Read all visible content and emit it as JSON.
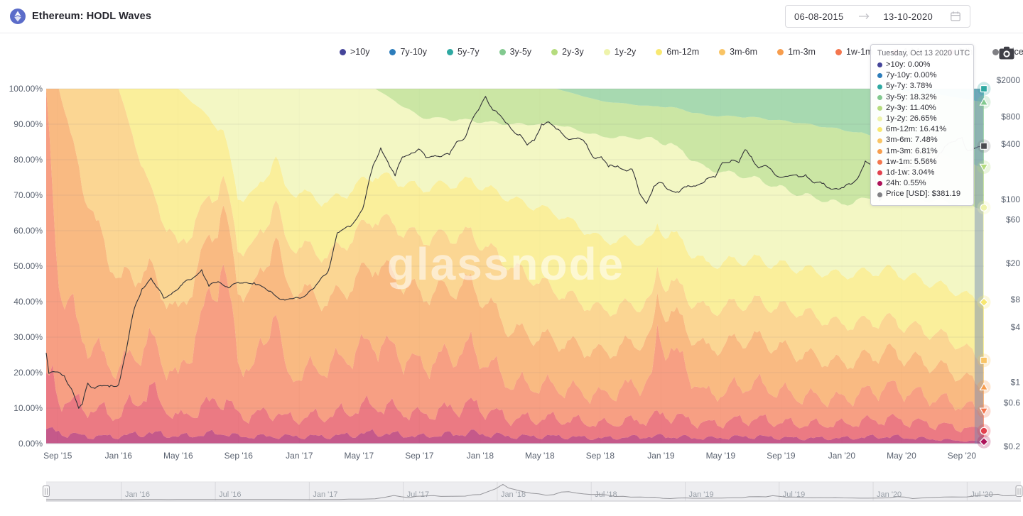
{
  "header": {
    "title": "Ethereum: HODL Waves",
    "date_range": {
      "from": "06-08-2015",
      "to": "13-10-2020"
    }
  },
  "watermark": "glassnode",
  "legend": [
    {
      "label": ">10y",
      "color": "#45459a"
    },
    {
      "label": "7y-10y",
      "color": "#2d7dbb"
    },
    {
      "label": "5y-7y",
      "color": "#2fa9a2"
    },
    {
      "label": "3y-5y",
      "color": "#82c98f"
    },
    {
      "label": "2y-3y",
      "color": "#b5dc7e"
    },
    {
      "label": "1y-2y",
      "color": "#eef3ab"
    },
    {
      "label": "6m-12m",
      "color": "#f8e871"
    },
    {
      "label": "3m-6m",
      "color": "#f9c465"
    },
    {
      "label": "1m-3m",
      "color": "#f79d4d"
    },
    {
      "label": "1w-1m",
      "color": "#f4764e"
    },
    {
      "label": "1d-1w",
      "color": "#e2414e"
    },
    {
      "label": "24h",
      "color": "#ad1259"
    },
    {
      "label": "Price [USD]",
      "color": "#808084"
    }
  ],
  "tooltip": {
    "title": "Tuesday, Oct 13 2020 UTC",
    "rows": [
      {
        "label": ">10y",
        "value": "0.00%",
        "color": "#45459a"
      },
      {
        "label": "7y-10y",
        "value": "0.00%",
        "color": "#2d7dbb"
      },
      {
        "label": "5y-7y",
        "value": "3.78%",
        "color": "#2fa9a2"
      },
      {
        "label": "3y-5y",
        "value": "18.32%",
        "color": "#82c98f"
      },
      {
        "label": "2y-3y",
        "value": "11.40%",
        "color": "#b5dc7e"
      },
      {
        "label": "1y-2y",
        "value": "26.65%",
        "color": "#eef3ab"
      },
      {
        "label": "6m-12m",
        "value": "16.41%",
        "color": "#f8e871"
      },
      {
        "label": "3m-6m",
        "value": "7.48%",
        "color": "#f9c465"
      },
      {
        "label": "1m-3m",
        "value": "6.81%",
        "color": "#f79d4d"
      },
      {
        "label": "1w-1m",
        "value": "5.56%",
        "color": "#f4764e"
      },
      {
        "label": "1d-1w",
        "value": "3.04%",
        "color": "#e2414e"
      },
      {
        "label": "24h",
        "value": "0.55%",
        "color": "#ad1259"
      },
      {
        "label": "Price [USD]",
        "value": "$381.19",
        "color": "#808084"
      }
    ]
  },
  "axes": {
    "y_left": [
      {
        "label": "100.00%",
        "value": 100
      },
      {
        "label": "90.00%",
        "value": 90
      },
      {
        "label": "80.00%",
        "value": 80
      },
      {
        "label": "70.00%",
        "value": 70
      },
      {
        "label": "60.00%",
        "value": 60
      },
      {
        "label": "50.00%",
        "value": 50
      },
      {
        "label": "40.00%",
        "value": 40
      },
      {
        "label": "30.00%",
        "value": 30
      },
      {
        "label": "20.00%",
        "value": 20
      },
      {
        "label": "10.00%",
        "value": 10
      },
      {
        "label": "0.00%",
        "value": 0
      }
    ],
    "y_right": [
      {
        "label": "$2000",
        "value": 2000
      },
      {
        "label": "$800",
        "value": 800
      },
      {
        "label": "$400",
        "value": 400
      },
      {
        "label": "$100",
        "value": 100
      },
      {
        "label": "$60",
        "value": 60
      },
      {
        "label": "$20",
        "value": 20
      },
      {
        "label": "$8",
        "value": 8
      },
      {
        "label": "$4",
        "value": 4
      },
      {
        "label": "$1",
        "value": 1
      },
      {
        "label": "$0.6",
        "value": 0.6
      },
      {
        "label": "$0.2",
        "value": 0.2
      }
    ],
    "x_ticks": [
      {
        "label": "Sep '15",
        "t": 2015.664
      },
      {
        "label": "Jan '16",
        "t": 2016.0
      },
      {
        "label": "May '16",
        "t": 2016.33
      },
      {
        "label": "Sep '16",
        "t": 2016.664
      },
      {
        "label": "Jan '17",
        "t": 2017.0
      },
      {
        "label": "May '17",
        "t": 2017.33
      },
      {
        "label": "Sep '17",
        "t": 2017.664
      },
      {
        "label": "Jan '18",
        "t": 2018.0
      },
      {
        "label": "May '18",
        "t": 2018.33
      },
      {
        "label": "Sep '18",
        "t": 2018.664
      },
      {
        "label": "Jan '19",
        "t": 2019.0
      },
      {
        "label": "May '19",
        "t": 2019.33
      },
      {
        "label": "Sep '19",
        "t": 2019.664
      },
      {
        "label": "Jan '20",
        "t": 2020.0
      },
      {
        "label": "May '20",
        "t": 2020.33
      },
      {
        "label": "Sep '20",
        "t": 2020.664
      }
    ]
  },
  "navigator": {
    "ticks": [
      {
        "label": "Jan '16",
        "t": 2016.0
      },
      {
        "label": "Jul '16",
        "t": 2016.5
      },
      {
        "label": "Jan '17",
        "t": 2017.0
      },
      {
        "label": "Jul '17",
        "t": 2017.5
      },
      {
        "label": "Jan '18",
        "t": 2018.0
      },
      {
        "label": "Jul '18",
        "t": 2018.5
      },
      {
        "label": "Jan '19",
        "t": 2019.0
      },
      {
        "label": "Jul '19",
        "t": 2019.5
      },
      {
        "label": "Jan '20",
        "t": 2020.0
      },
      {
        "label": "Jul '20",
        "t": 2020.5
      }
    ]
  },
  "chart_data": {
    "type": "area",
    "subtype": "100pct-stacked-hodl-waves-with-log-price-line",
    "title": "Ethereum: HODL Waves",
    "x_range_decimal_years": [
      2015.6,
      2020.786
    ],
    "ylim_left_pct": [
      0,
      100
    ],
    "y_right_scale": "log",
    "grid": true,
    "legend_position": "top-center",
    "sample_years": [
      2015.6,
      2015.67,
      2015.83,
      2016.0,
      2016.17,
      2016.33,
      2016.58,
      2016.66,
      2016.75,
      2016.87,
      2016.92,
      2017.17,
      2017.42,
      2017.67,
      2017.95,
      2018.17,
      2018.42,
      2018.67,
      2018.95,
      2018.98,
      2019.04,
      2019.25,
      2019.5,
      2019.75,
      2020.0,
      2020.25,
      2020.58,
      2020.786
    ],
    "series": [
      {
        "name": "24h",
        "color": "#ad1259",
        "marker": "diamond",
        "values": [
          4,
          3,
          2,
          2,
          3,
          2,
          3,
          2,
          2,
          2,
          2,
          2,
          3,
          2,
          3,
          2,
          2,
          1.5,
          2,
          2,
          2,
          1.5,
          2,
          1.5,
          1.5,
          2,
          1,
          0.55
        ]
      },
      {
        "name": "1d-1w",
        "color": "#e2414e",
        "marker": "circle",
        "values": [
          16,
          10,
          8,
          6,
          12,
          5,
          10,
          6,
          6,
          7,
          5,
          6,
          8,
          6,
          8,
          5,
          5,
          4,
          5,
          6,
          6,
          4,
          5,
          4,
          4,
          5,
          4,
          3.04
        ]
      },
      {
        "name": "1w-1m",
        "color": "#f4764e",
        "marker": "triangle-down",
        "values": [
          80,
          32,
          18,
          13,
          14,
          11,
          38,
          16,
          13,
          30,
          12,
          14,
          18,
          14,
          16,
          10,
          9,
          8,
          11,
          22,
          20,
          8,
          10,
          8,
          7,
          9,
          7,
          5.56
        ]
      },
      {
        "name": "1m-3m",
        "color": "#f79d4d",
        "marker": "triangle-up",
        "values": [
          0,
          55,
          40,
          25,
          20,
          18,
          16,
          20,
          22,
          20,
          26,
          18,
          22,
          20,
          18,
          15,
          13,
          12,
          12,
          10,
          10,
          13,
          13,
          12,
          10,
          10,
          9,
          6.81
        ]
      },
      {
        "name": "3m-6m",
        "color": "#f9c465",
        "marker": "square",
        "values": [
          0,
          0,
          32,
          54,
          23,
          19,
          8,
          12,
          12,
          10,
          12,
          13,
          13,
          16,
          14,
          18,
          14,
          12,
          10,
          8,
          8,
          11,
          10,
          12,
          11,
          9,
          9,
          7.48
        ]
      },
      {
        "name": "6m-12m",
        "color": "#f8e871",
        "marker": "diamond",
        "values": [
          0,
          0,
          0,
          0,
          28,
          45,
          13,
          14,
          15,
          12,
          15,
          15,
          12,
          14,
          15,
          19,
          22,
          20,
          17,
          13,
          14,
          13,
          12,
          12,
          14,
          14,
          14,
          16.41
        ]
      },
      {
        "name": "1y-2y",
        "color": "#eef3ab",
        "marker": "circle",
        "values": [
          0,
          0,
          0,
          0,
          0,
          0,
          12,
          30,
          30,
          19,
          28,
          32,
          24,
          20,
          17,
          21,
          25,
          29,
          29,
          24,
          25,
          27,
          23,
          21,
          20,
          21,
          24,
          26.65
        ]
      },
      {
        "name": "2y-3y",
        "color": "#b5dc7e",
        "marker": "triangle-down",
        "values": [
          0,
          0,
          0,
          0,
          0,
          0,
          0,
          0,
          0,
          0,
          0,
          0,
          0,
          8,
          9,
          10,
          10,
          10,
          9,
          10,
          10,
          15,
          17,
          20,
          21,
          16,
          13,
          11.4
        ]
      },
      {
        "name": "3y-5y",
        "color": "#82c98f",
        "marker": "triangle-up",
        "values": [
          0,
          0,
          0,
          0,
          0,
          0,
          0,
          0,
          0,
          0,
          0,
          0,
          0,
          0,
          0,
          0,
          0,
          3.5,
          5,
          5,
          5,
          7.5,
          8,
          9.5,
          11.5,
          14,
          17,
          18.32
        ]
      },
      {
        "name": "5y-7y",
        "color": "#2fa9a2",
        "marker": "square",
        "values": [
          0,
          0,
          0,
          0,
          0,
          0,
          0,
          0,
          0,
          0,
          0,
          0,
          0,
          0,
          0,
          0,
          0,
          0,
          0,
          0,
          0,
          0,
          0,
          0,
          0,
          0,
          2,
          3.78
        ]
      },
      {
        "name": "7y-10y",
        "color": "#2d7dbb",
        "marker": "circle",
        "values": []
      },
      {
        "name": ">10y",
        "color": "#45459a",
        "marker": "circle",
        "values": []
      }
    ],
    "price_line": {
      "name": "Price [USD]",
      "color": "#333338",
      "points": [
        [
          2015.6,
          2.1
        ],
        [
          2015.615,
          1.25
        ],
        [
          2015.65,
          1.3
        ],
        [
          2015.7,
          1.18
        ],
        [
          2015.74,
          0.85
        ],
        [
          2015.78,
          0.52
        ],
        [
          2015.8,
          0.58
        ],
        [
          2015.83,
          0.98
        ],
        [
          2015.86,
          0.87
        ],
        [
          2015.9,
          0.92
        ],
        [
          2015.95,
          0.89
        ],
        [
          2016.0,
          0.94
        ],
        [
          2016.04,
          2.1
        ],
        [
          2016.08,
          5.6
        ],
        [
          2016.13,
          10.5
        ],
        [
          2016.18,
          13.8
        ],
        [
          2016.21,
          11.0
        ],
        [
          2016.25,
          8.3
        ],
        [
          2016.3,
          9.6
        ],
        [
          2016.35,
          11.6
        ],
        [
          2016.42,
          14.2
        ],
        [
          2016.46,
          17.0
        ],
        [
          2016.5,
          11.2
        ],
        [
          2016.55,
          12.6
        ],
        [
          2016.6,
          11.1
        ],
        [
          2016.67,
          12.1
        ],
        [
          2016.75,
          12.3
        ],
        [
          2016.83,
          9.9
        ],
        [
          2016.92,
          7.9
        ],
        [
          2017.0,
          8.3
        ],
        [
          2017.08,
          10.6
        ],
        [
          2017.16,
          16.5
        ],
        [
          2017.21,
          43
        ],
        [
          2017.28,
          50
        ],
        [
          2017.35,
          78
        ],
        [
          2017.4,
          205
        ],
        [
          2017.45,
          365
        ],
        [
          2017.49,
          255
        ],
        [
          2017.53,
          180
        ],
        [
          2017.57,
          290
        ],
        [
          2017.62,
          320
        ],
        [
          2017.66,
          355
        ],
        [
          2017.7,
          285
        ],
        [
          2017.75,
          300
        ],
        [
          2017.83,
          308
        ],
        [
          2017.87,
          425
        ],
        [
          2017.91,
          455
        ],
        [
          2017.95,
          700
        ],
        [
          2017.99,
          940
        ],
        [
          2018.03,
          1330
        ],
        [
          2018.06,
          1020
        ],
        [
          2018.1,
          860
        ],
        [
          2018.14,
          690
        ],
        [
          2018.18,
          565
        ],
        [
          2018.22,
          510
        ],
        [
          2018.26,
          392
        ],
        [
          2018.3,
          440
        ],
        [
          2018.34,
          665
        ],
        [
          2018.38,
          700
        ],
        [
          2018.42,
          585
        ],
        [
          2018.46,
          505
        ],
        [
          2018.5,
          452
        ],
        [
          2018.54,
          468
        ],
        [
          2018.58,
          415
        ],
        [
          2018.63,
          282
        ],
        [
          2018.67,
          292
        ],
        [
          2018.71,
          226
        ],
        [
          2018.76,
          232
        ],
        [
          2018.8,
          208
        ],
        [
          2018.84,
          214
        ],
        [
          2018.88,
          118
        ],
        [
          2018.92,
          90
        ],
        [
          2018.96,
          138
        ],
        [
          2019.0,
          152
        ],
        [
          2019.04,
          127
        ],
        [
          2019.09,
          121
        ],
        [
          2019.14,
          136
        ],
        [
          2019.19,
          139
        ],
        [
          2019.25,
          166
        ],
        [
          2019.3,
          174
        ],
        [
          2019.34,
          252
        ],
        [
          2019.39,
          268
        ],
        [
          2019.43,
          251
        ],
        [
          2019.465,
          348
        ],
        [
          2019.5,
          292
        ],
        [
          2019.54,
          220
        ],
        [
          2019.58,
          234
        ],
        [
          2019.63,
          186
        ],
        [
          2019.68,
          176
        ],
        [
          2019.72,
          182
        ],
        [
          2019.76,
          176
        ],
        [
          2019.8,
          186
        ],
        [
          2019.84,
          153
        ],
        [
          2019.89,
          149
        ],
        [
          2019.93,
          133
        ],
        [
          2019.97,
          131
        ],
        [
          2020.01,
          134
        ],
        [
          2020.05,
          146
        ],
        [
          2020.09,
          172
        ],
        [
          2020.13,
          262
        ],
        [
          2020.17,
          222
        ],
        [
          2020.21,
          96
        ],
        [
          2020.25,
          139
        ],
        [
          2020.29,
          189
        ],
        [
          2020.33,
          206
        ],
        [
          2020.38,
          231
        ],
        [
          2020.42,
          239
        ],
        [
          2020.46,
          229
        ],
        [
          2020.5,
          241
        ],
        [
          2020.54,
          320
        ],
        [
          2020.58,
          392
        ],
        [
          2020.63,
          432
        ],
        [
          2020.665,
          474
        ],
        [
          2020.69,
          350
        ],
        [
          2020.715,
          342
        ],
        [
          2020.745,
          366
        ],
        [
          2020.786,
          381.19
        ]
      ]
    },
    "hover": {
      "date": "Tuesday, Oct 13 2020 UTC",
      "x_year": 2020.758,
      "column_color": "#6f86b4",
      "price_usd": 381.19,
      "values_pct": {
        "24h": 0.55,
        "1d-1w": 3.04,
        "1w-1m": 5.56,
        "1m-3m": 6.81,
        "3m-6m": 7.48,
        "6m-12m": 16.41,
        "1y-2y": 26.65,
        "2y-3y": 11.4,
        "3y-5y": 18.32,
        "5y-7y": 3.78,
        "7y-10y": 0,
        ">10y": 0
      }
    }
  }
}
